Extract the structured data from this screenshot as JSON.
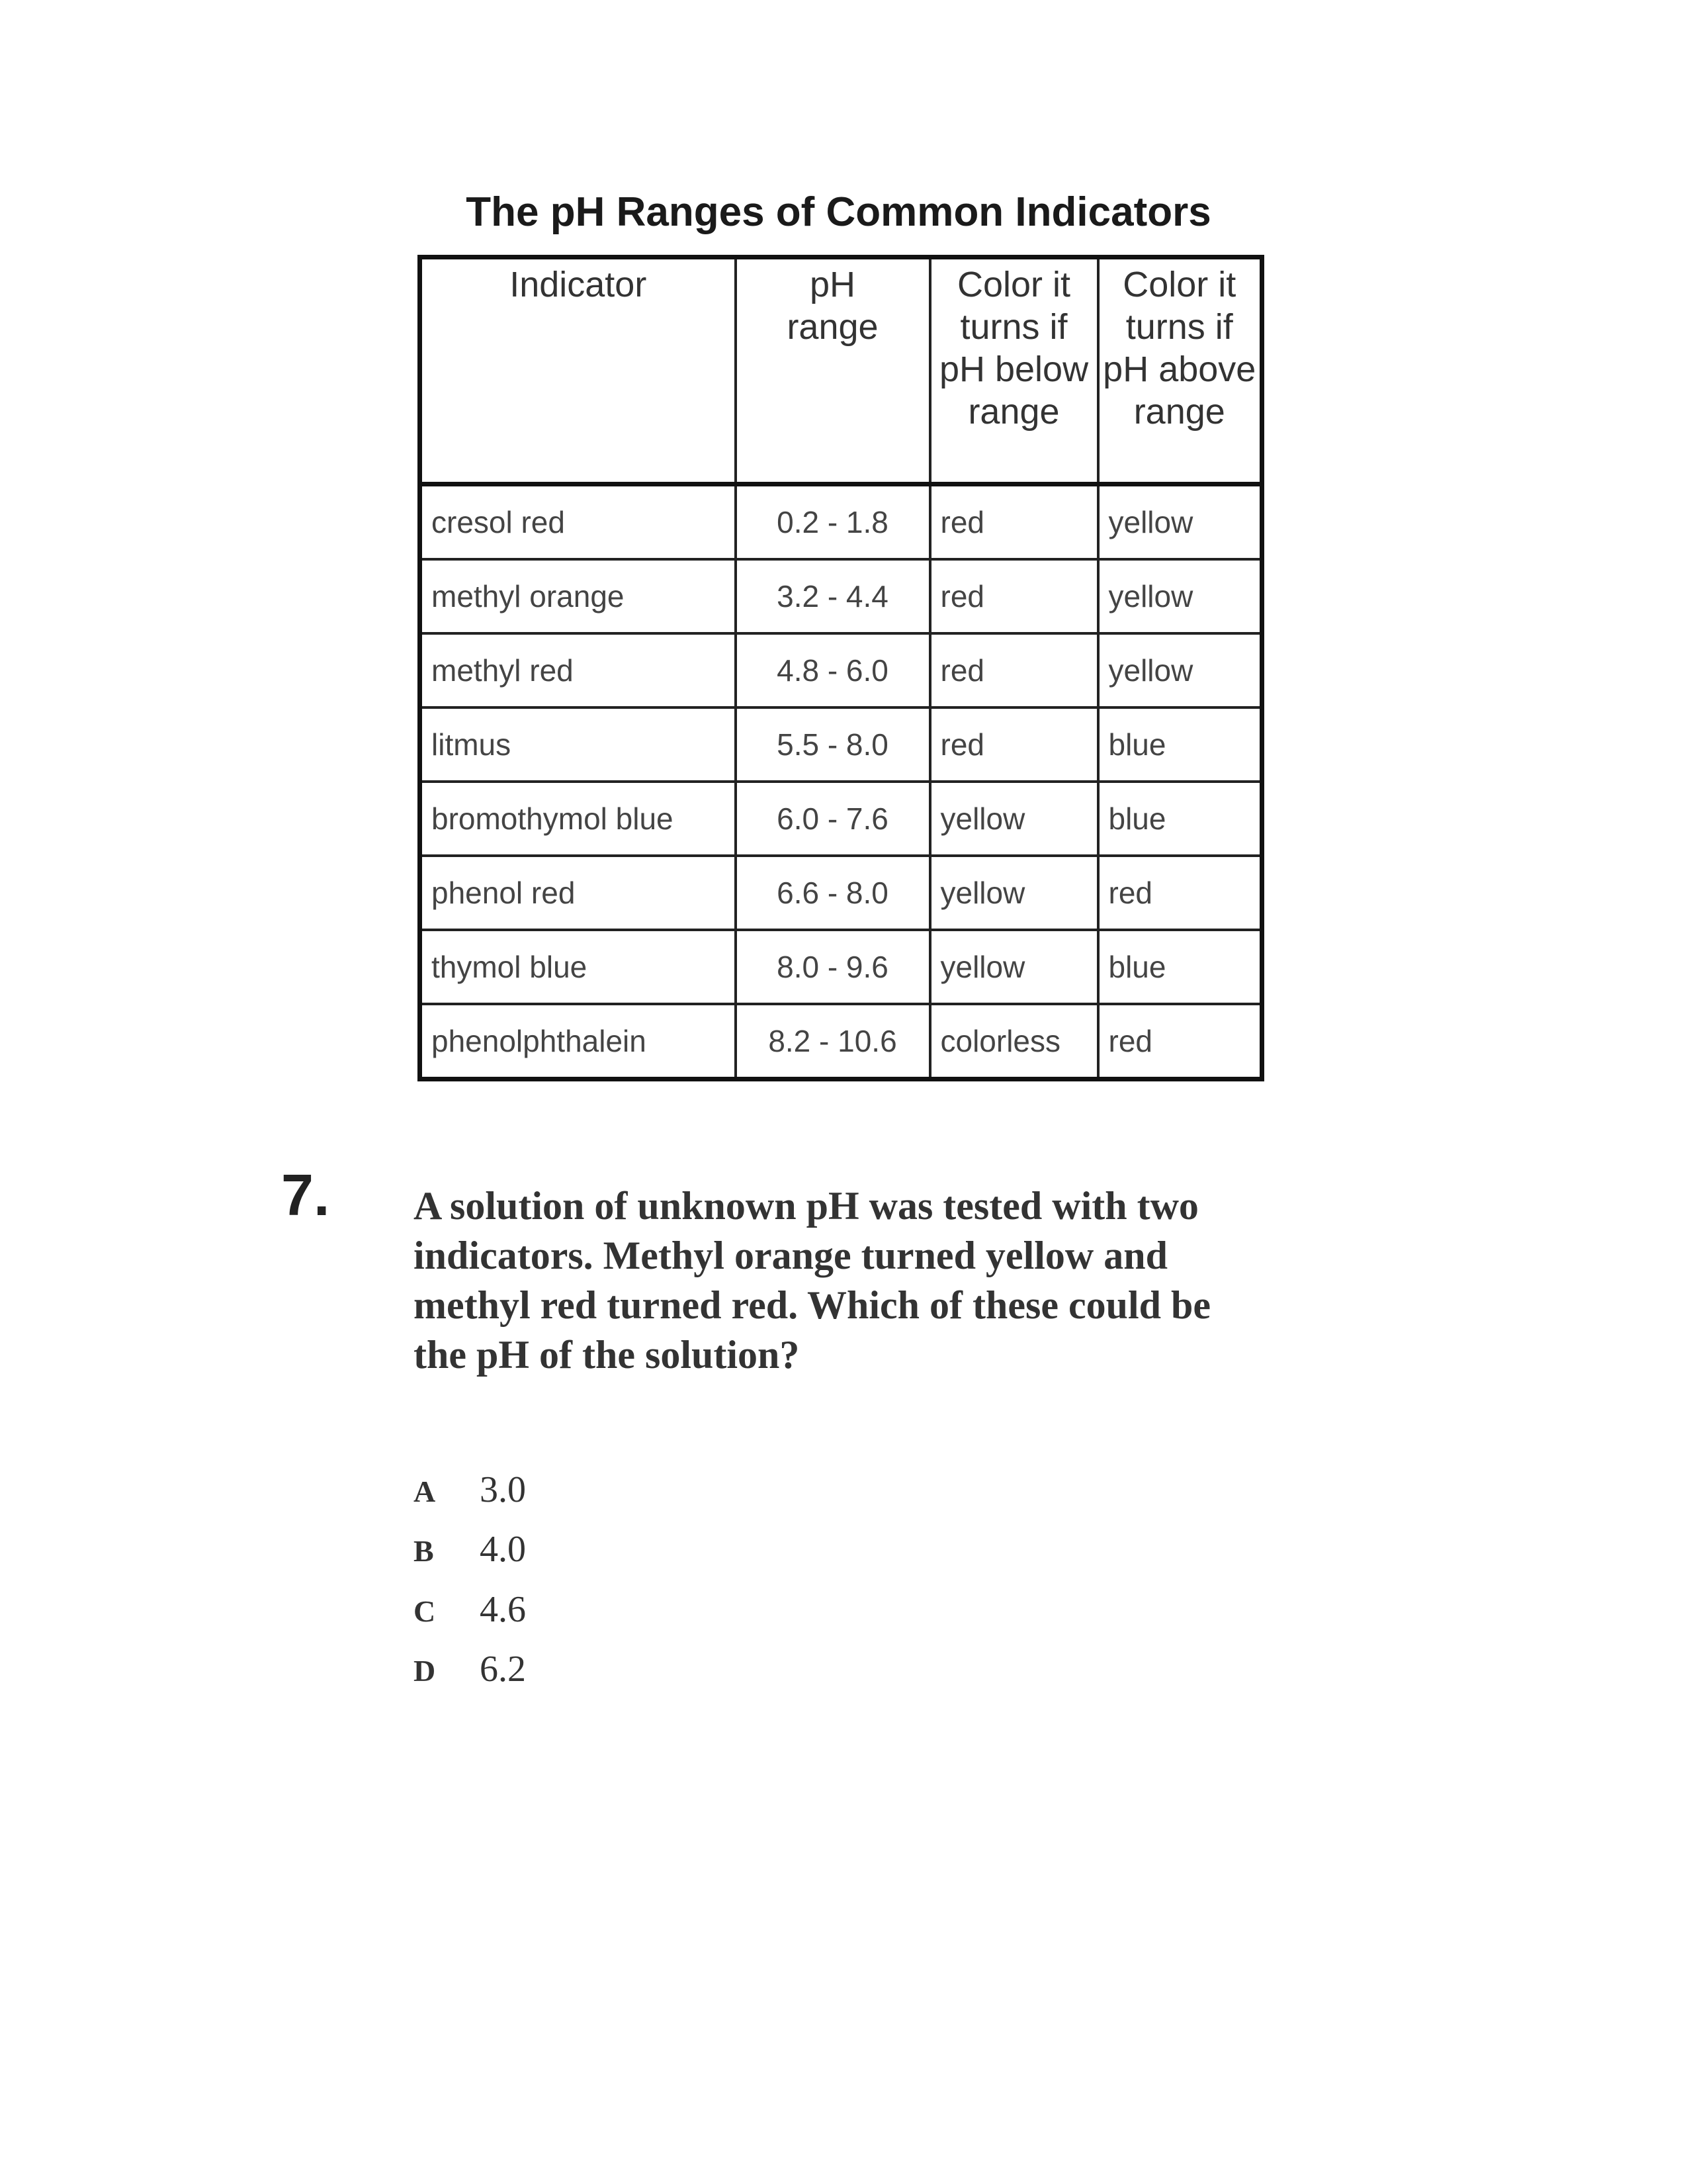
{
  "table": {
    "title": "The pH Ranges of Common Indicators",
    "headers": [
      "Indicator",
      "pH range",
      "Color it turns if pH below range",
      "Color it turns if pH above range"
    ],
    "rows": [
      [
        "cresol red",
        "0.2 - 1.8",
        "red",
        "yellow"
      ],
      [
        "methyl orange",
        "3.2 - 4.4",
        "red",
        "yellow"
      ],
      [
        "methyl red",
        "4.8 - 6.0",
        "red",
        "yellow"
      ],
      [
        "litmus",
        "5.5 - 8.0",
        "red",
        "blue"
      ],
      [
        "bromothymol blue",
        "6.0 - 7.6",
        "yellow",
        "blue"
      ],
      [
        "phenol red",
        "6.6 - 8.0",
        "yellow",
        "red"
      ],
      [
        "thymol blue",
        "8.0 - 9.6",
        "yellow",
        "blue"
      ],
      [
        "phenolphthalein",
        "8.2 - 10.6",
        "colorless",
        "red"
      ]
    ]
  },
  "question": {
    "number": "7.",
    "text": "A solution of unknown pH was tested with two indicators. Methyl orange turned yellow and methyl red turned red. Which of these could be the pH of the solution?",
    "choices": [
      {
        "letter": "A",
        "value": "3.0"
      },
      {
        "letter": "B",
        "value": "4.0"
      },
      {
        "letter": "C",
        "value": "4.6"
      },
      {
        "letter": "D",
        "value": "6.2"
      }
    ]
  }
}
